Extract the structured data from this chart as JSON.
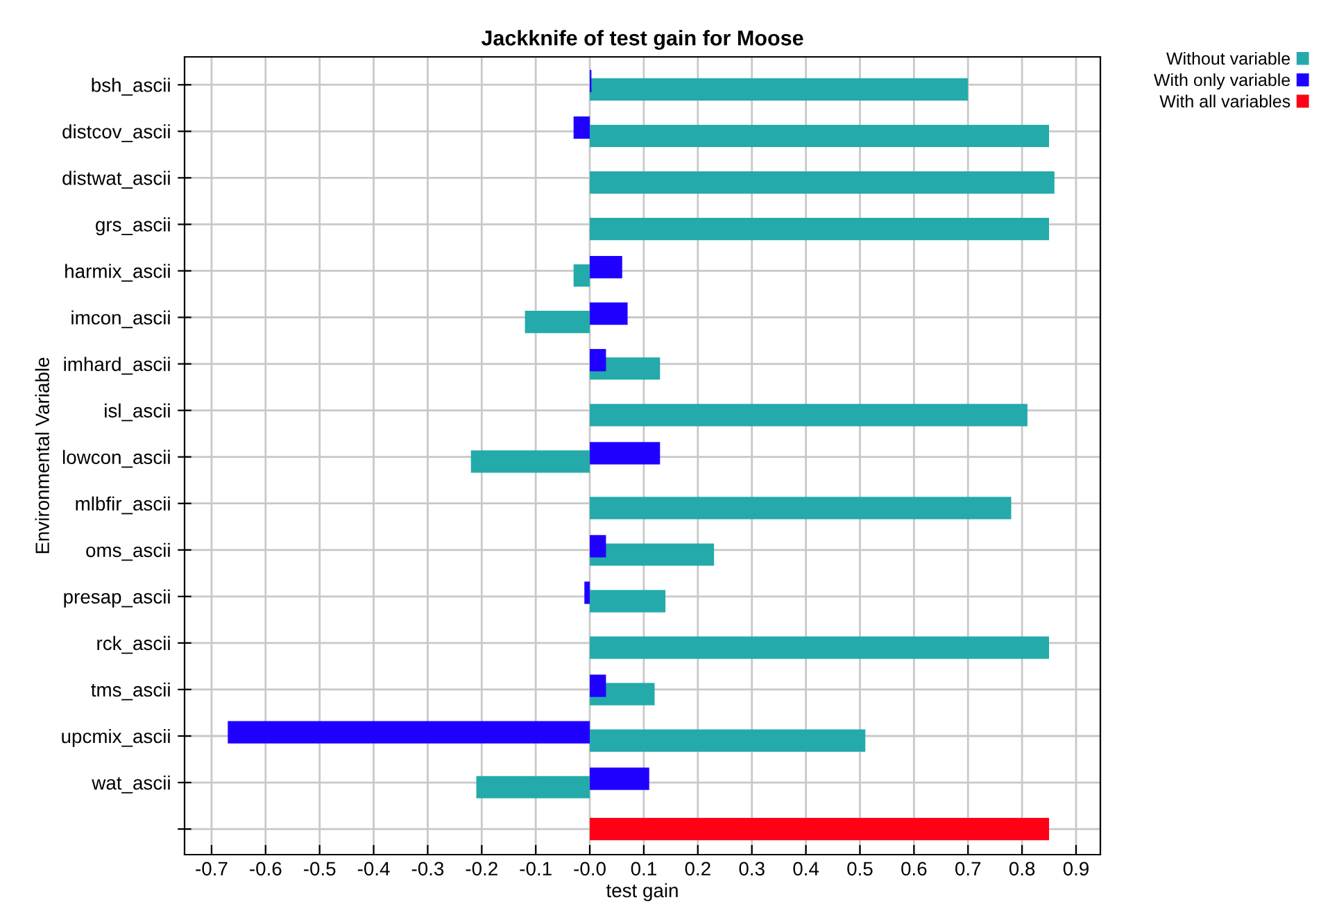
{
  "chart_data": {
    "type": "bar",
    "orientation": "horizontal",
    "title": "Jackknife of test gain for Moose",
    "xlabel": "test gain",
    "ylabel": "Environmental Variable",
    "categories": [
      "bsh_ascii",
      "distcov_ascii",
      "distwat_ascii",
      "grs_ascii",
      "harmix_ascii",
      "imcon_ascii",
      "imhard_ascii",
      "isl_ascii",
      "lowcon_ascii",
      "mlbfir_ascii",
      "oms_ascii",
      "presap_ascii",
      "rck_ascii",
      "tms_ascii",
      "upcmix_ascii",
      "wat_ascii",
      null
    ],
    "series": [
      {
        "name": "Without variable",
        "color": "#24aaaa",
        "values": [
          0.7,
          0.85,
          0.86,
          0.85,
          -0.03,
          -0.12,
          0.13,
          0.81,
          -0.22,
          0.78,
          0.23,
          0.14,
          0.85,
          0.12,
          0.51,
          -0.21,
          null
        ]
      },
      {
        "name": "With only variable",
        "color": "#1f00ff",
        "values": [
          0.003,
          -0.03,
          null,
          null,
          0.06,
          0.07,
          0.03,
          null,
          0.13,
          null,
          0.03,
          -0.01,
          null,
          0.03,
          -0.67,
          0.11,
          null
        ]
      },
      {
        "name": "With all variables",
        "color": "#ff0016",
        "values": [
          null,
          null,
          null,
          null,
          null,
          null,
          null,
          null,
          null,
          null,
          null,
          null,
          null,
          null,
          null,
          null,
          0.85
        ]
      }
    ],
    "xlim": [
      -0.75,
      0.945
    ],
    "xticks": [
      -0.7,
      -0.6,
      -0.5,
      -0.4,
      -0.3,
      -0.2,
      -0.1,
      {
        "value": 0,
        "label": "-0.0"
      },
      0.1,
      0.2,
      0.3,
      0.4,
      0.5,
      0.6,
      0.7,
      0.8,
      0.9
    ],
    "grid": true,
    "legend": "top right"
  }
}
